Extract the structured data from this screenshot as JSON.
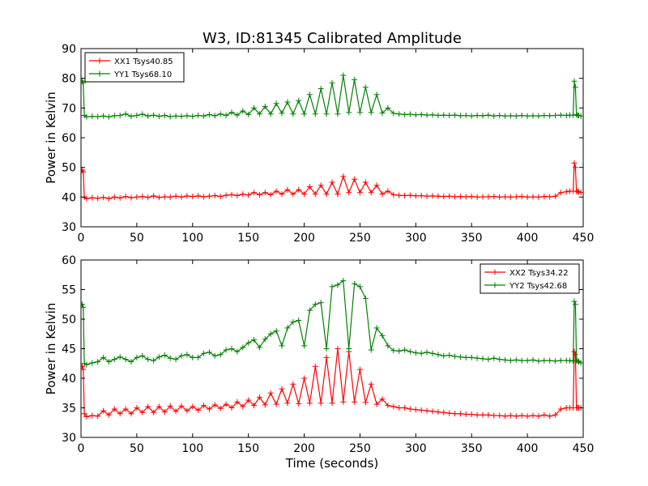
{
  "title": "W3, ID:81345 Calibrated Amplitude",
  "chart_data": [
    {
      "type": "line",
      "panel": "top",
      "title": "W3, ID:81345 Calibrated Amplitude",
      "xlabel": "",
      "ylabel": "Power in Kelvin",
      "xlim": [
        0,
        450
      ],
      "ylim": [
        30,
        90
      ],
      "xticks": [
        0,
        50,
        100,
        150,
        200,
        250,
        300,
        350,
        400,
        450
      ],
      "yticks": [
        30,
        40,
        50,
        60,
        70,
        80,
        90
      ],
      "grid": false,
      "legend_position": "top-left",
      "x": [
        0,
        1,
        2,
        3,
        5,
        10,
        15,
        20,
        25,
        30,
        35,
        40,
        45,
        50,
        55,
        60,
        65,
        70,
        75,
        80,
        85,
        90,
        95,
        100,
        105,
        110,
        115,
        120,
        125,
        130,
        135,
        140,
        145,
        150,
        155,
        160,
        165,
        170,
        175,
        180,
        185,
        190,
        195,
        200,
        205,
        210,
        215,
        220,
        225,
        230,
        235,
        240,
        245,
        250,
        255,
        260,
        265,
        270,
        275,
        280,
        285,
        290,
        295,
        300,
        305,
        310,
        315,
        320,
        325,
        330,
        335,
        340,
        345,
        350,
        355,
        360,
        365,
        370,
        375,
        380,
        385,
        390,
        395,
        400,
        405,
        410,
        415,
        420,
        425,
        430,
        435,
        438,
        441,
        442,
        443,
        444,
        445,
        446,
        448
      ],
      "series": [
        {
          "name": "XX1 Tsys40.85",
          "color": "#ff0000",
          "values": [
            49,
            49,
            48.5,
            40,
            39.5,
            39.8,
            39.6,
            39.9,
            39.5,
            40,
            39.7,
            40.2,
            39.8,
            40,
            40.2,
            39.9,
            40.4,
            39.9,
            40.1,
            40,
            40.3,
            40,
            40.4,
            40.2,
            40.4,
            40.1,
            40.3,
            40.5,
            40.2,
            40.6,
            40.8,
            40.5,
            41,
            40.7,
            41.5,
            40.8,
            41.5,
            40.8,
            42,
            41,
            42.5,
            41,
            42.5,
            41,
            43.5,
            41,
            44,
            41,
            45,
            41,
            47,
            41.5,
            46,
            41.5,
            45,
            41.5,
            44,
            41,
            42,
            40.8,
            40.6,
            40.5,
            40.6,
            40.4,
            40.5,
            40.3,
            40.4,
            40.3,
            40.2,
            40.3,
            40.1,
            40.2,
            40.1,
            40.2,
            40,
            40.1,
            40.1,
            40.2,
            40,
            40.1,
            40,
            40.1,
            40.2,
            40,
            40.1,
            40,
            40.2,
            40.1,
            40.3,
            41.5,
            41.8,
            42,
            42,
            51.5,
            50,
            42,
            41.8,
            41.8,
            41.5
          ]
        },
        {
          "name": "YY1 Tsys68.10",
          "color": "#008000",
          "values": [
            79,
            79,
            78.5,
            67.5,
            67,
            67.2,
            67.1,
            67.3,
            67,
            67.4,
            67.5,
            68,
            67.2,
            67.5,
            67.9,
            67.3,
            67.6,
            67.2,
            67.5,
            67.1,
            67.3,
            67.2,
            67.4,
            67.2,
            67.5,
            67.3,
            67.8,
            67.4,
            68,
            67.5,
            68.5,
            67.6,
            69,
            67.8,
            70,
            68,
            70.5,
            68,
            71.5,
            68.2,
            72,
            68,
            72.5,
            68,
            74.5,
            68,
            76.5,
            68,
            78.5,
            68,
            81,
            68.5,
            79.5,
            68.5,
            77,
            68.5,
            74.5,
            68.3,
            70,
            68.2,
            68,
            67.8,
            67.9,
            67.7,
            67.8,
            67.6,
            67.7,
            67.5,
            67.6,
            67.5,
            67.6,
            67.4,
            67.5,
            67.3,
            67.5,
            67.4,
            67.6,
            67.3,
            67.5,
            67.3,
            67.4,
            67.3,
            67.5,
            67.3,
            67.4,
            67.3,
            67.5,
            67.4,
            67.5,
            67.6,
            67.5,
            67.6,
            67.6,
            79,
            77,
            67.8,
            67.5,
            67.5,
            67.3
          ]
        }
      ]
    },
    {
      "type": "line",
      "panel": "bottom",
      "title": "",
      "xlabel": "Time (seconds)",
      "ylabel": "Power in Kelvin",
      "xlim": [
        0,
        450
      ],
      "ylim": [
        30,
        60
      ],
      "xticks": [
        0,
        50,
        100,
        150,
        200,
        250,
        300,
        350,
        400,
        450
      ],
      "yticks": [
        30,
        35,
        40,
        45,
        50,
        55,
        60
      ],
      "grid": false,
      "legend_position": "top-right",
      "x": [
        0,
        1,
        2,
        3,
        5,
        10,
        15,
        20,
        25,
        30,
        35,
        40,
        45,
        50,
        55,
        60,
        65,
        70,
        75,
        80,
        85,
        90,
        95,
        100,
        105,
        110,
        115,
        120,
        125,
        130,
        135,
        140,
        145,
        150,
        155,
        160,
        165,
        170,
        175,
        180,
        185,
        190,
        195,
        200,
        205,
        210,
        215,
        220,
        225,
        230,
        235,
        240,
        245,
        250,
        255,
        260,
        265,
        270,
        275,
        280,
        285,
        290,
        295,
        300,
        305,
        310,
        315,
        320,
        325,
        330,
        335,
        340,
        345,
        350,
        355,
        360,
        365,
        370,
        375,
        380,
        385,
        390,
        395,
        400,
        405,
        410,
        415,
        420,
        425,
        430,
        435,
        438,
        441,
        442,
        443,
        444,
        445,
        446,
        448
      ],
      "series": [
        {
          "name": "XX2 Tsys34.22",
          "color": "#ff0000",
          "values": [
            42,
            42,
            41.5,
            34,
            33.5,
            33.7,
            33.6,
            34.5,
            33.8,
            34.8,
            34,
            34.8,
            34,
            35,
            34.2,
            35.2,
            34.2,
            35.2,
            34.3,
            35.3,
            34.4,
            35.3,
            34.5,
            35.2,
            34.6,
            35.4,
            34.8,
            35.5,
            34.9,
            35.6,
            35,
            36,
            35.2,
            36.3,
            35.4,
            36.8,
            35.5,
            37.5,
            35.6,
            38.2,
            35.8,
            39,
            35.7,
            40,
            35.8,
            42,
            35.8,
            43.5,
            35.8,
            45,
            36,
            44.5,
            36,
            41.5,
            35.9,
            39,
            35.6,
            36.5,
            35.4,
            35.2,
            35,
            35,
            34.8,
            34.7,
            34.6,
            34.5,
            34.4,
            34.3,
            34.2,
            34.1,
            34,
            34,
            33.9,
            33.9,
            33.8,
            33.8,
            33.8,
            33.7,
            33.7,
            33.6,
            33.7,
            33.6,
            33.7,
            33.6,
            33.7,
            33.6,
            33.8,
            33.6,
            33.8,
            34.8,
            35,
            35,
            35,
            44.5,
            44,
            35,
            35,
            35,
            35
          ]
        },
        {
          "name": "YY2 Tsys42.68",
          "color": "#008000",
          "values": [
            52.5,
            52.5,
            52,
            42.5,
            42.3,
            42.6,
            42.8,
            43.5,
            42.8,
            43.2,
            43.6,
            43.2,
            42.8,
            43.5,
            43.8,
            43.2,
            43,
            43.6,
            43.9,
            43.4,
            43.2,
            43.8,
            44,
            43.5,
            43.5,
            44.2,
            44.4,
            43.8,
            44,
            44.8,
            45,
            44.5,
            45.2,
            46,
            46.5,
            45.2,
            46.6,
            47.5,
            48,
            45.5,
            48.5,
            49.5,
            49.8,
            45.5,
            51.5,
            52.5,
            52.8,
            45,
            55.5,
            55.8,
            56.5,
            45,
            56,
            55.5,
            53.5,
            44.8,
            48.5,
            47.2,
            45.5,
            44.7,
            44.6,
            44.8,
            44.5,
            44.3,
            44.2,
            44.4,
            44.2,
            44,
            43.8,
            43.9,
            43.7,
            43.6,
            43.5,
            43.5,
            43.4,
            43.3,
            43.2,
            43.4,
            43.2,
            43.1,
            43,
            43.1,
            43,
            43,
            43.1,
            42.9,
            43,
            43,
            42.9,
            43,
            43,
            43,
            42.9,
            53,
            52.5,
            43,
            42.9,
            42.8,
            42.6
          ]
        }
      ]
    }
  ]
}
